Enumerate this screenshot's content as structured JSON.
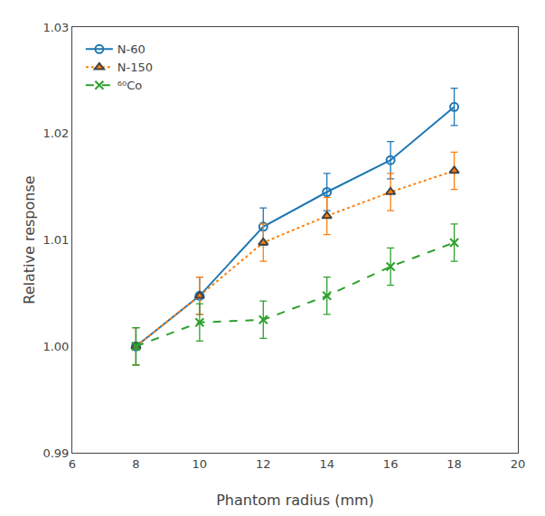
{
  "chart_data": {
    "type": "line",
    "x": [
      8,
      10,
      12,
      14,
      16,
      18
    ],
    "series": [
      {
        "name": "N-60",
        "marker": "circle-open",
        "line_style": "solid",
        "values": [
          1.0,
          1.00475,
          1.01125,
          1.0145,
          1.0175,
          1.0225
        ],
        "errors": [
          0.00175,
          0.00175,
          0.00175,
          0.00175,
          0.00175,
          0.00175
        ]
      },
      {
        "name": "N-150",
        "marker": "triangle",
        "line_style": "dotted",
        "values": [
          1.0,
          1.00475,
          1.00975,
          1.01225,
          1.0145,
          1.0165
        ],
        "errors": [
          0.00175,
          0.00175,
          0.00175,
          0.00175,
          0.00175,
          0.00175
        ]
      },
      {
        "name": "⁶⁰Co",
        "marker": "x",
        "line_style": "dashed",
        "values": [
          1.0,
          1.00225,
          1.0025,
          1.00475,
          1.0075,
          1.00975
        ],
        "errors": [
          0.00175,
          0.00175,
          0.00175,
          0.00175,
          0.00175,
          0.00175
        ]
      }
    ],
    "xlabel": "Phantom radius (mm)",
    "ylabel": "Relative response",
    "xlim": [
      6,
      20
    ],
    "ylim": [
      0.99,
      1.03
    ],
    "xticks": [
      6,
      8,
      10,
      12,
      14,
      16,
      18,
      20
    ],
    "yticks": [
      0.99,
      {
        "value": 1.0,
        "label": "1.00"
      },
      1.01,
      1.02,
      1.03
    ],
    "grid": false,
    "legend": "upper left"
  }
}
